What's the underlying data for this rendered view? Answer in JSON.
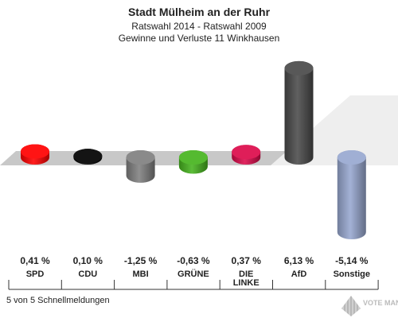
{
  "header": {
    "title": "Stadt Mülheim an der Ruhr",
    "subtitle1": "Ratswahl 2014 - Ratswahl 2009",
    "subtitle2": "Gewinne und Verluste 11 Winkhausen"
  },
  "footer": {
    "status": "5 von 5 Schnellmeldungen",
    "watermark": "VOTE MANAGER"
  },
  "chart_data": {
    "type": "bar",
    "categories": [
      "SPD",
      "CDU",
      "MBI",
      "GRÜNE",
      "DIE LINKE",
      "AfD",
      "Sonstige"
    ],
    "category_lines": [
      [
        "SPD"
      ],
      [
        "CDU"
      ],
      [
        "MBI"
      ],
      [
        "GRÜNE"
      ],
      [
        "DIE",
        "LINKE"
      ],
      [
        "AfD"
      ],
      [
        "Sonstige"
      ]
    ],
    "values": [
      0.41,
      0.1,
      -1.25,
      -0.63,
      0.37,
      6.13,
      -5.14
    ],
    "value_labels": [
      "0,41 %",
      "0,10 %",
      "-1,25 %",
      "-0,63 %",
      "0,37 %",
      "6,13 %",
      "-5,14 %"
    ],
    "colors": [
      "#ff0000",
      "#000000",
      "#808080",
      "#46b41e",
      "#dc0a4b",
      "#4a4a4a",
      "#98a8d0"
    ],
    "title": "Stadt Mülheim an der Ruhr",
    "xlabel": "",
    "ylabel": "",
    "grid": false
  }
}
